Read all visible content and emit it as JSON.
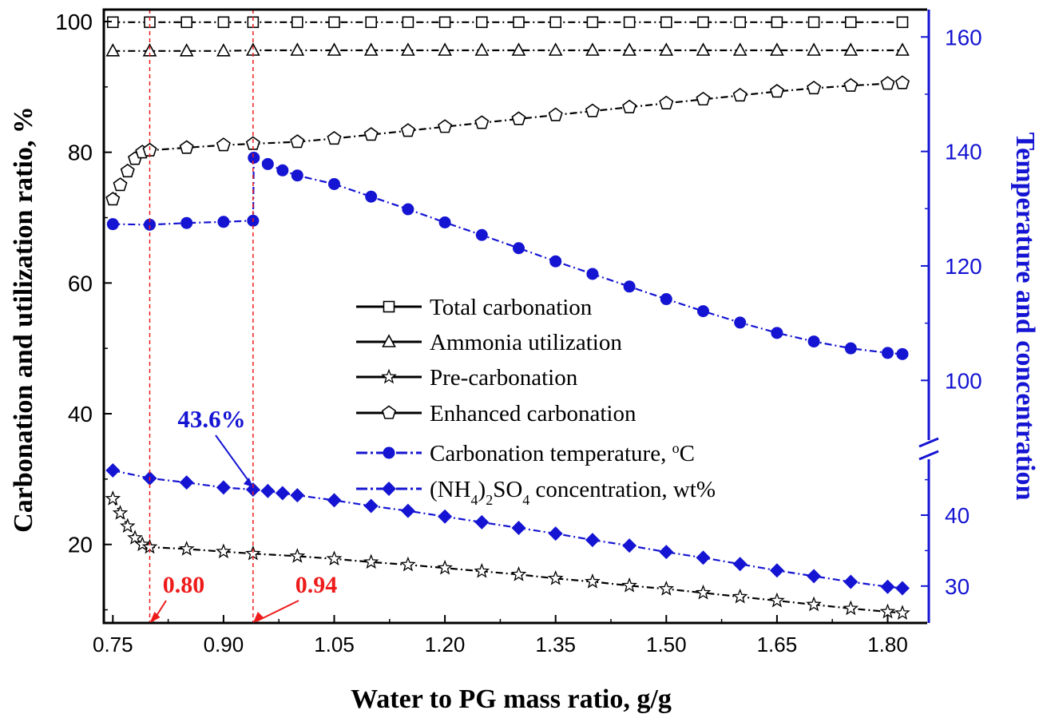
{
  "chart_data": {
    "type": "line",
    "xlabel": "Water to PG mass ratio, g/g",
    "ylabel_left": "Carbonation and utilization ratio, %",
    "ylabel_right": "Temperature and concentration",
    "xlim": [
      0.74,
      1.83
    ],
    "ylim_left": [
      8,
      102
    ],
    "x_ticks": [
      "0.75",
      "0.90",
      "1.05",
      "1.20",
      "1.35",
      "1.50",
      "1.65",
      "1.80"
    ],
    "y_ticks_left": [
      "20",
      "40",
      "60",
      "80",
      "100"
    ],
    "y_ticks_right_upper": [
      "100",
      "120",
      "140",
      "160"
    ],
    "y_ticks_right_lower": [
      "30",
      "40"
    ],
    "right_axis_break": true,
    "right_axis_upper_range": [
      92,
      166
    ],
    "right_axis_lower_range": [
      26.5,
      48
    ],
    "legend_position": "center",
    "grid": false,
    "colors": {
      "black_series": "#000000",
      "blue_series": "#1414d2",
      "annotation_red": "#ee1b1b",
      "right_axis": "#1414d2"
    },
    "annotations": [
      {
        "text": "0.80",
        "x": 0.8,
        "color": "red",
        "vertical_line": true
      },
      {
        "text": "0.94",
        "x": 0.94,
        "color": "red",
        "vertical_line": true
      },
      {
        "text": "43.6%",
        "x": 0.94,
        "y": 43.6,
        "color": "blue",
        "points_to": "(NH4)2SO4 concentration"
      }
    ],
    "series": [
      {
        "name": "Total carbonation",
        "axis": "left",
        "marker": "square",
        "color": "#000000",
        "x": [
          0.75,
          0.8,
          0.85,
          0.9,
          0.94,
          1.0,
          1.05,
          1.1,
          1.15,
          1.2,
          1.25,
          1.3,
          1.35,
          1.4,
          1.45,
          1.5,
          1.55,
          1.6,
          1.65,
          1.7,
          1.75,
          1.82
        ],
        "y": [
          99.9,
          99.9,
          99.9,
          99.9,
          99.9,
          99.9,
          99.9,
          99.9,
          99.9,
          99.9,
          99.9,
          99.9,
          99.9,
          99.9,
          99.9,
          99.9,
          99.9,
          99.9,
          99.9,
          99.9,
          99.9,
          99.9
        ]
      },
      {
        "name": "Ammonia utilization",
        "axis": "left",
        "marker": "triangle",
        "color": "#000000",
        "x": [
          0.75,
          0.8,
          0.85,
          0.9,
          0.94,
          1.0,
          1.05,
          1.1,
          1.15,
          1.2,
          1.25,
          1.3,
          1.35,
          1.4,
          1.45,
          1.5,
          1.55,
          1.6,
          1.65,
          1.7,
          1.75,
          1.82
        ],
        "y": [
          95.5,
          95.5,
          95.5,
          95.5,
          95.6,
          95.6,
          95.6,
          95.6,
          95.6,
          95.6,
          95.6,
          95.6,
          95.6,
          95.6,
          95.6,
          95.6,
          95.6,
          95.6,
          95.6,
          95.6,
          95.6,
          95.6
        ]
      },
      {
        "name": "Pre-carbonation",
        "axis": "left",
        "marker": "star",
        "color": "#000000",
        "x": [
          0.75,
          0.76,
          0.77,
          0.78,
          0.79,
          0.8,
          0.85,
          0.9,
          0.94,
          1.0,
          1.05,
          1.1,
          1.15,
          1.2,
          1.25,
          1.3,
          1.35,
          1.4,
          1.45,
          1.5,
          1.55,
          1.6,
          1.65,
          1.7,
          1.75,
          1.8,
          1.82
        ],
        "y": [
          27.0,
          24.8,
          22.8,
          21.0,
          20.0,
          19.6,
          19.3,
          18.9,
          18.6,
          18.2,
          17.8,
          17.3,
          16.9,
          16.4,
          15.9,
          15.4,
          14.8,
          14.3,
          13.7,
          13.2,
          12.6,
          12.0,
          11.4,
          10.8,
          10.2,
          9.7,
          9.5
        ]
      },
      {
        "name": "Enhanced carbonation",
        "axis": "left",
        "marker": "pentagon",
        "color": "#000000",
        "x": [
          0.75,
          0.76,
          0.77,
          0.78,
          0.79,
          0.8,
          0.85,
          0.9,
          0.94,
          1.0,
          1.05,
          1.1,
          1.15,
          1.2,
          1.25,
          1.3,
          1.35,
          1.4,
          1.45,
          1.5,
          1.55,
          1.6,
          1.65,
          1.7,
          1.75,
          1.8,
          1.82
        ],
        "y": [
          72.8,
          75.0,
          77.1,
          79.0,
          80.0,
          80.3,
          80.7,
          81.1,
          81.3,
          81.6,
          82.1,
          82.7,
          83.3,
          83.9,
          84.5,
          85.1,
          85.7,
          86.3,
          86.9,
          87.5,
          88.1,
          88.7,
          89.3,
          89.8,
          90.2,
          90.5,
          90.6
        ]
      },
      {
        "name": "Carbonation temperature, °C",
        "axis": "right",
        "marker": "circle",
        "color": "#1414d2",
        "x": [
          0.75,
          0.8,
          0.85,
          0.9,
          0.94,
          0.941,
          0.96,
          0.98,
          1.0,
          1.05,
          1.1,
          1.15,
          1.2,
          1.25,
          1.3,
          1.35,
          1.4,
          1.45,
          1.5,
          1.55,
          1.6,
          1.65,
          1.7,
          1.75,
          1.8,
          1.82
        ],
        "y": [
          127.3,
          127.2,
          127.5,
          127.7,
          127.9,
          138.9,
          137.8,
          136.7,
          135.8,
          134.3,
          132.1,
          129.9,
          127.6,
          125.4,
          123.1,
          120.8,
          118.6,
          116.4,
          114.2,
          112.1,
          110.1,
          108.3,
          106.8,
          105.6,
          104.8,
          104.6
        ]
      },
      {
        "name": "(NH4)2SO4 concentration, wt%",
        "axis": "right",
        "marker": "diamond",
        "color": "#1414d2",
        "x": [
          0.75,
          0.8,
          0.85,
          0.9,
          0.94,
          0.96,
          0.98,
          1.0,
          1.05,
          1.1,
          1.15,
          1.2,
          1.25,
          1.3,
          1.35,
          1.4,
          1.45,
          1.5,
          1.55,
          1.6,
          1.65,
          1.7,
          1.75,
          1.8,
          1.82
        ],
        "y": [
          46.3,
          45.2,
          44.6,
          43.9,
          43.6,
          43.4,
          43.1,
          42.8,
          42.1,
          41.3,
          40.6,
          39.8,
          39.0,
          38.2,
          37.4,
          36.5,
          35.7,
          34.8,
          34.0,
          33.1,
          32.2,
          31.4,
          30.6,
          29.9,
          29.7
        ]
      }
    ]
  }
}
